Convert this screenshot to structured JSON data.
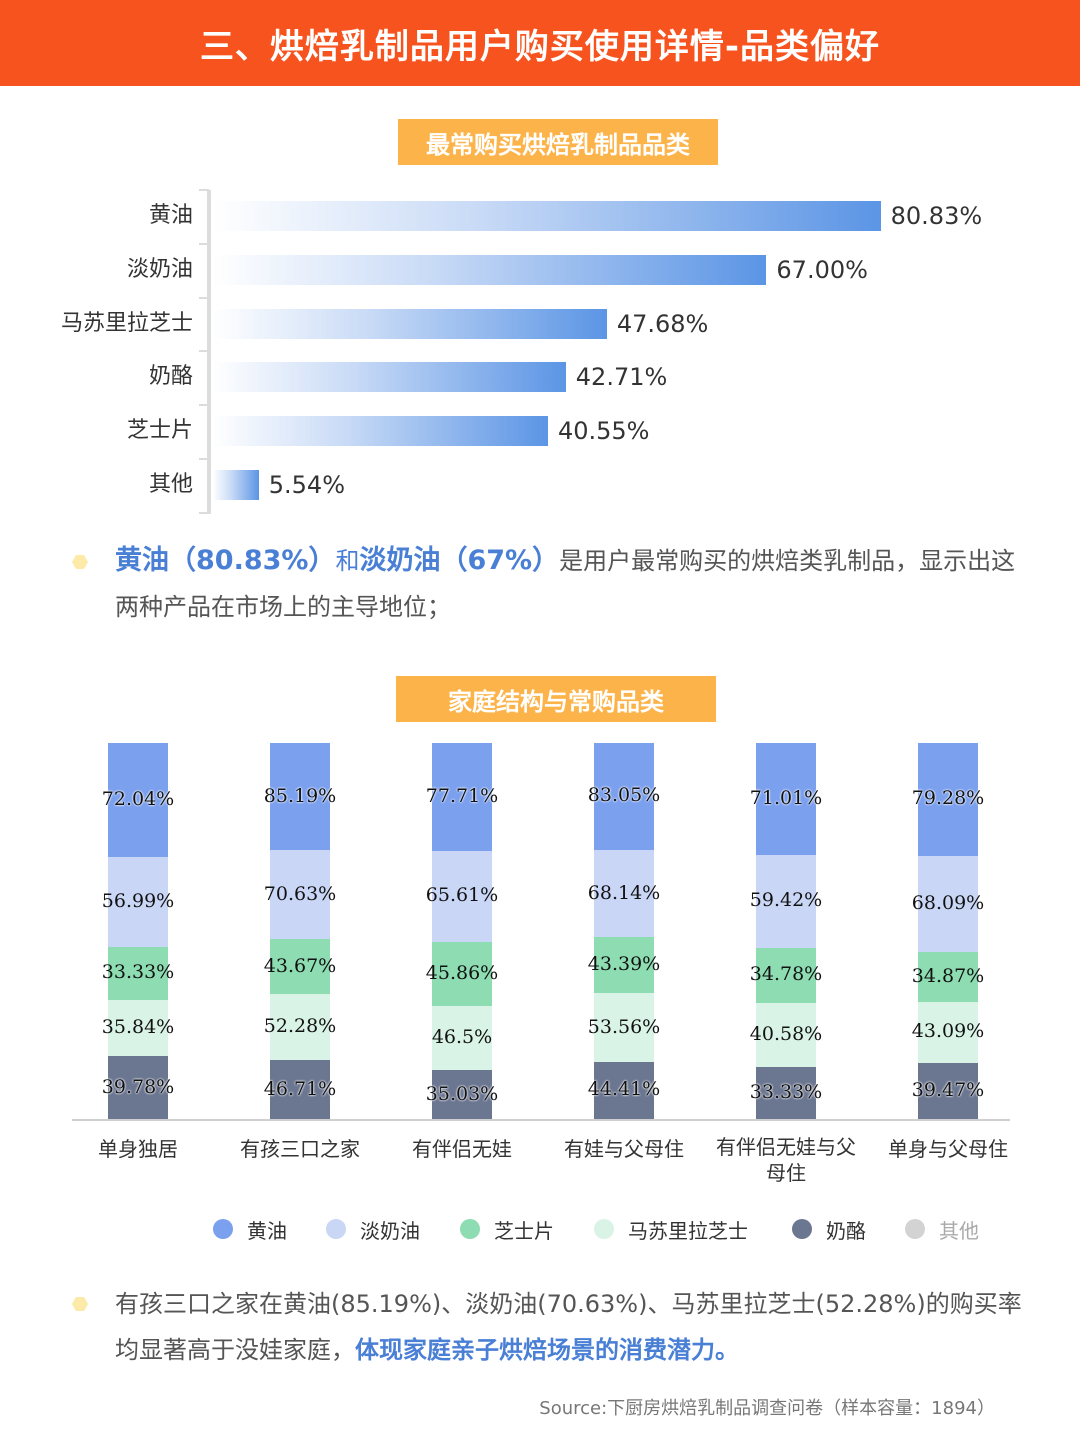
{
  "header": {
    "title": "三、烘焙乳制品用户购买使用详情-品类偏好"
  },
  "section1": {
    "title": "最常购买烘焙乳制品品类"
  },
  "section2": {
    "title": "家庭结构与常购品类"
  },
  "note1": {
    "hl1": "黄油（80.83%）",
    "and": "和",
    "hl2": "淡奶油（67%）",
    "rest": "是用户最常购买的烘焙类乳制品，显示出这两种产品在市场上的主导地位；"
  },
  "note2": {
    "text": "有孩三口之家在黄油(85.19%)、淡奶油(70.63%)、马苏里拉芝士(52.28%)的购买率均显著高于没娃家庭，",
    "highlight": "体现家庭亲子烘焙场景的消费潜力。"
  },
  "source": "Source:下厨房烘焙乳制品调查问卷（样本容量：1894）",
  "chart_data": [
    {
      "type": "bar",
      "orientation": "horizontal",
      "title": "最常购买烘焙乳制品品类",
      "categories": [
        "黄油",
        "淡奶油",
        "马苏里拉芝士",
        "奶酪",
        "芝士片",
        "其他"
      ],
      "values": [
        80.83,
        67.0,
        47.68,
        42.71,
        40.55,
        5.54
      ],
      "value_labels": [
        "80.83%",
        "67.00%",
        "47.68%",
        "42.71%",
        "40.55%",
        "5.54%"
      ],
      "xlim": [
        0,
        100
      ],
      "color": "#5b95e5",
      "grid": false
    },
    {
      "type": "bar",
      "stacked": true,
      "title": "家庭结构与常购品类",
      "categories": [
        "单身独居",
        "有孩三口之家",
        "有伴侣无娃",
        "有娃与父母住",
        "有伴侣无娃与父母住",
        "单身与父母住"
      ],
      "category_labels": [
        [
          "单身独居"
        ],
        [
          "有孩三口之家"
        ],
        [
          "有伴侣无娃"
        ],
        [
          "有娃与父母住"
        ],
        [
          "有伴侣无娃与父",
          "母住"
        ],
        [
          "单身与父母住"
        ]
      ],
      "series": [
        {
          "name": "奶酪",
          "color": "#6b7691",
          "values": [
            39.78,
            46.71,
            35.03,
            44.41,
            33.33,
            39.47
          ],
          "labels": [
            "39.78%",
            "46.71%",
            "35.03%",
            "44.41%",
            "33.33%",
            "39.47%"
          ]
        },
        {
          "name": "马苏里拉芝士",
          "color": "#d9f3e6",
          "values": [
            35.84,
            52.28,
            46.5,
            53.56,
            40.58,
            43.09
          ],
          "labels": [
            "35.84%",
            "52.28%",
            "46.5%",
            "53.56%",
            "40.58%",
            "43.09%"
          ]
        },
        {
          "name": "芝士片",
          "color": "#8ddcb2",
          "values": [
            33.33,
            43.67,
            45.86,
            43.39,
            34.78,
            34.87
          ],
          "labels": [
            "33.33%",
            "43.67%",
            "45.86%",
            "43.39%",
            "34.78%",
            "34.87%"
          ]
        },
        {
          "name": "淡奶油",
          "color": "#c9d6f6",
          "values": [
            56.99,
            70.63,
            65.61,
            68.14,
            59.42,
            68.09
          ],
          "labels": [
            "56.99%",
            "70.63%",
            "65.61%",
            "68.14%",
            "59.42%",
            "68.09%"
          ]
        },
        {
          "name": "黄油",
          "color": "#7ba0ee",
          "values": [
            72.04,
            85.19,
            77.71,
            83.05,
            71.01,
            79.28
          ],
          "labels": [
            "72.04%",
            "85.19%",
            "77.71%",
            "83.05%",
            "71.01%",
            "79.28%"
          ]
        }
      ],
      "legend": {
        "placement": "bottom",
        "items": [
          {
            "name": "黄油",
            "color": "#7ba0ee"
          },
          {
            "name": "淡奶油",
            "color": "#c9d6f6"
          },
          {
            "name": "芝士片",
            "color": "#8ddcb2"
          },
          {
            "name": "马苏里拉芝士",
            "color": "#d9f3e6"
          },
          {
            "name": "奶酪",
            "color": "#6b7691"
          },
          {
            "name": "其他",
            "color": "#d3d3d3"
          }
        ]
      },
      "grid": false
    }
  ]
}
